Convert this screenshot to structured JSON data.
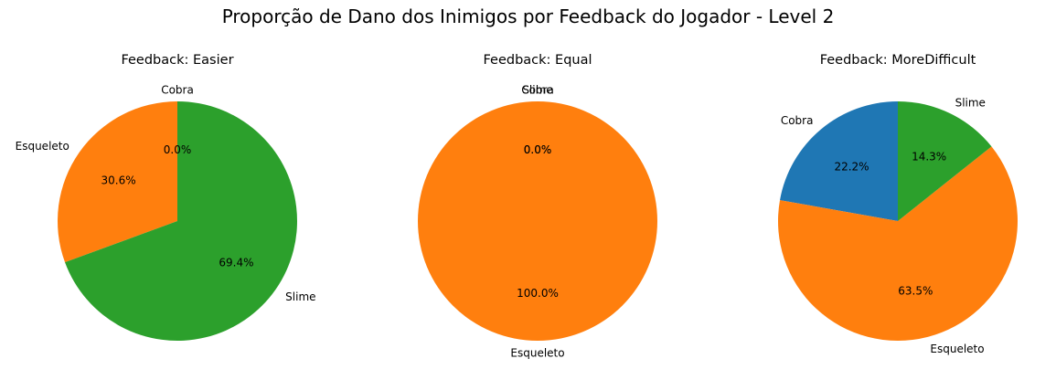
{
  "figure": {
    "title": "Proporção de Dano dos Inimigos por Feedback do Jogador - Level 2"
  },
  "chart_data": [
    {
      "type": "pie",
      "title": "Feedback: Easier",
      "labels": [
        "Cobra",
        "Esqueleto",
        "Slime"
      ],
      "values": [
        0.0,
        30.6,
        69.4
      ],
      "autopct_labels": [
        "0.0%",
        "30.6%",
        "69.4%"
      ],
      "colors": [
        "#1f77b4",
        "#ff7f0e",
        "#2ca02c"
      ],
      "start_angle_deg": 90,
      "direction": "counterclockwise"
    },
    {
      "type": "pie",
      "title": "Feedback: Equal",
      "labels": [
        "Cobra",
        "Esqueleto",
        "Slime"
      ],
      "values": [
        0.0,
        100.0,
        0.0
      ],
      "autopct_labels": [
        "0.0%",
        "100.0%",
        "0.0%"
      ],
      "colors": [
        "#1f77b4",
        "#ff7f0e",
        "#2ca02c"
      ],
      "start_angle_deg": 90,
      "direction": "counterclockwise"
    },
    {
      "type": "pie",
      "title": "Feedback: MoreDifficult",
      "labels": [
        "Cobra",
        "Esqueleto",
        "Slime"
      ],
      "values": [
        22.2,
        63.5,
        14.3
      ],
      "autopct_labels": [
        "22.2%",
        "63.5%",
        "14.3%"
      ],
      "colors": [
        "#1f77b4",
        "#ff7f0e",
        "#2ca02c"
      ],
      "start_angle_deg": 90,
      "direction": "counterclockwise"
    }
  ]
}
